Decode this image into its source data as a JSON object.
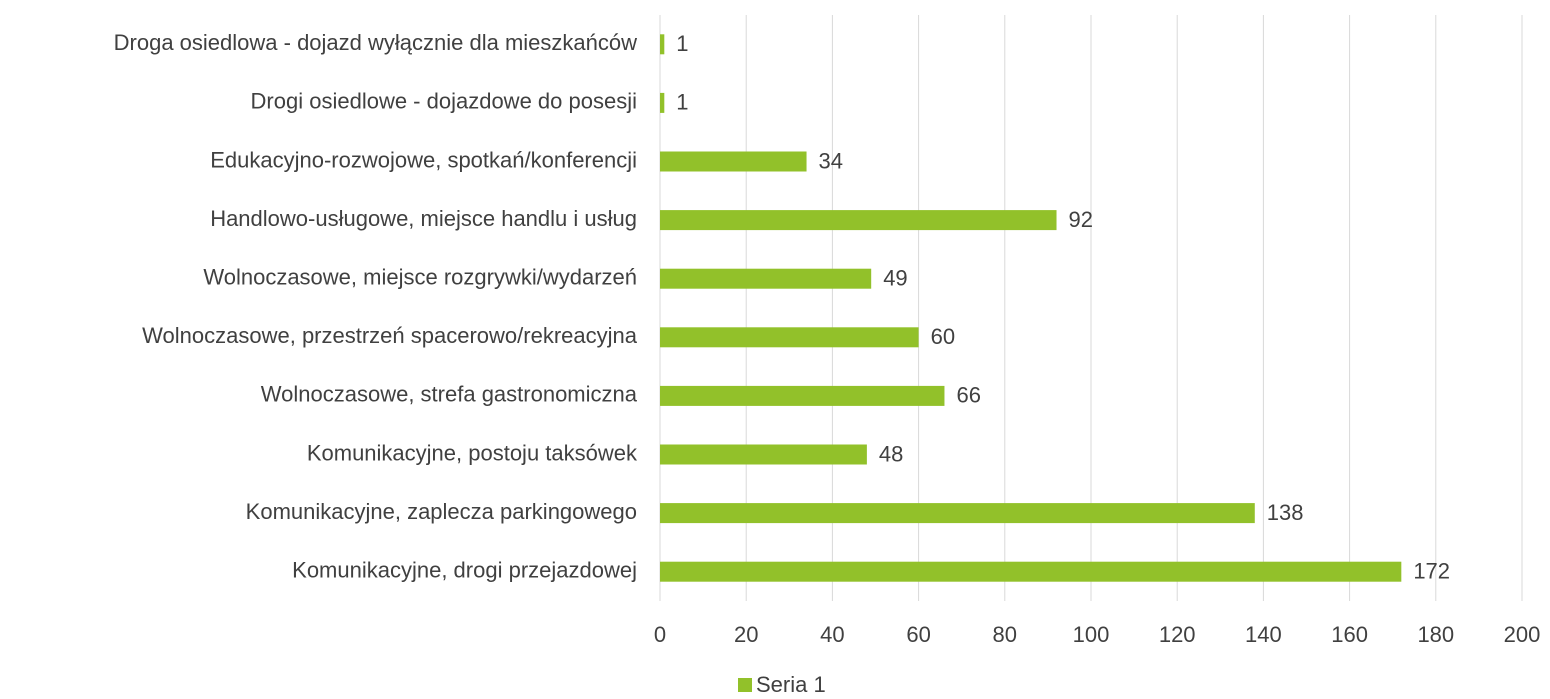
{
  "chart_data": {
    "type": "barh",
    "categories": [
      "Droga osiedlowa - dojazd wyłącznie dla mieszkańców",
      "Drogi osiedlowe - dojazdowe do posesji",
      "Edukacyjno-rozwojowe, spotkań/konferencji",
      "Handlowo-usługowe, miejsce handlu i usług",
      "Wolnoczasowe, miejsce rozgrywki/wydarzeń",
      "Wolnoczasowe, przestrzeń spacerowo/rekreacyjna",
      "Wolnoczasowe, strefa gastronomiczna",
      "Komunikacyjne, postoju taksówek",
      "Komunikacyjne, zaplecza parkingowego",
      "Komunikacyjne, drogi przejazdowej"
    ],
    "series": [
      {
        "name": "Seria 1",
        "color": "#92c12a",
        "values": [
          1,
          1,
          34,
          92,
          49,
          60,
          66,
          48,
          138,
          172
        ]
      }
    ],
    "xlim": [
      0,
      200
    ],
    "xticks": [
      0,
      20,
      40,
      60,
      80,
      100,
      120,
      140,
      160,
      180,
      200
    ],
    "grid": true,
    "legend": "bottom"
  }
}
